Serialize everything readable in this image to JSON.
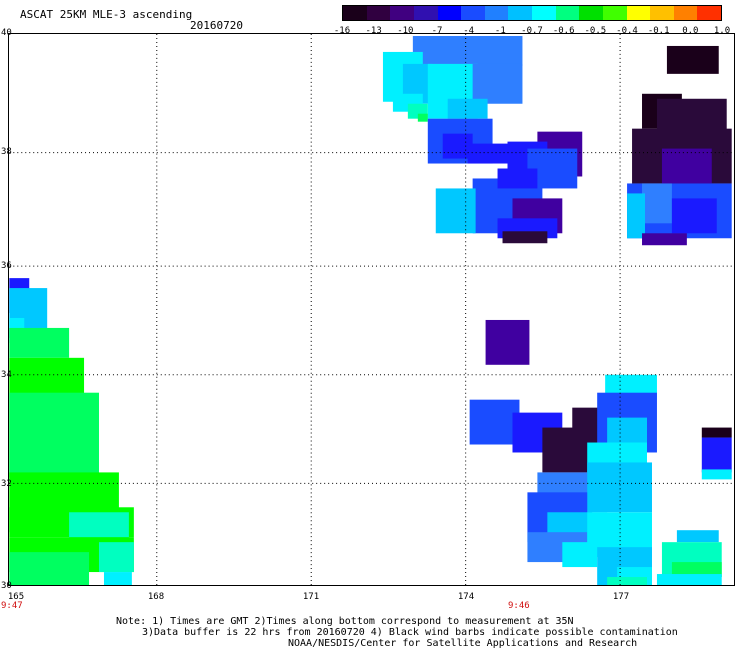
{
  "header": {
    "title": "ASCAT 25KM MLE-3 ascending",
    "date": "20160720"
  },
  "colorbar": {
    "labels": [
      "-16",
      "-13",
      "-10",
      "-7",
      "-4",
      "-1",
      "-0.7",
      "-0.6",
      "-0.5",
      "-0.4",
      "-0.1",
      "0.0",
      "1.0"
    ],
    "colors": [
      "#1a001a",
      "#300040",
      "#400080",
      "#3010b0",
      "#0000ff",
      "#1a4cff",
      "#2080ff",
      "#00c0ff",
      "#00ffff",
      "#00ff80",
      "#00e000",
      "#40ff00",
      "#ffff00",
      "#ffc000",
      "#ff8000",
      "#ff3000"
    ]
  },
  "map": {
    "lat_labels": [
      "40",
      "38",
      "36",
      "34",
      "32",
      "30"
    ],
    "lon_labels": [
      "165",
      "168",
      "171",
      "174",
      "177"
    ],
    "time_labels": [
      "9:47",
      "9:46"
    ],
    "palette": {
      "a": "#1a001a",
      "b": "#2a0a3a",
      "c": "#4000a0",
      "d": "#1a1aff",
      "e": "#1a4cff",
      "f": "#2f7fff",
      "g": "#00c8ff",
      "h": "#00f0ff",
      "i": "#00ffc0",
      "j": "#00ff60",
      "k": "#00ff00"
    }
  },
  "footer": {
    "line1": "Note: 1) Times are GMT 2)Times along bottom correspond to measurement at 35N",
    "line2": "3)Data buffer is 22 hrs from 20160720 4) Black wind barbs indicate possible contamination",
    "line3": "NOAA/NESDIS/Center for Satellite Applications and Research"
  }
}
